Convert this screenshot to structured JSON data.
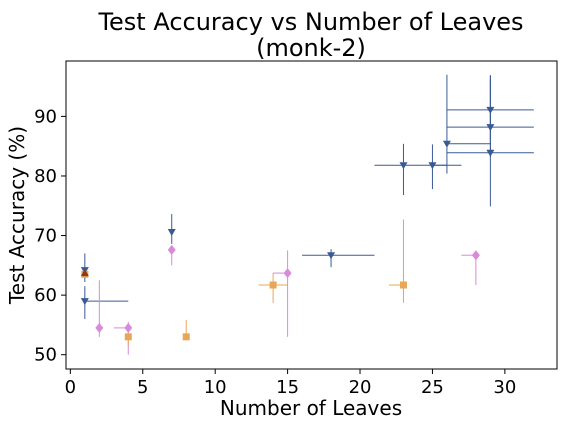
{
  "chart_data": {
    "type": "scatter",
    "title": "Test Accuracy vs Number of Leaves\n(monk-2)",
    "xlabel": "Number of Leaves",
    "ylabel": "Test Accuracy (%)",
    "xlim": [
      -0.3,
      33.6
    ],
    "ylim": [
      47.6,
      99.3
    ],
    "xticks": [
      0,
      5,
      10,
      15,
      20,
      25,
      30
    ],
    "yticks": [
      50,
      60,
      70,
      80,
      90
    ],
    "grid": false,
    "legend": "none",
    "series": [
      {
        "marker": "triangle-down",
        "color": "#3a5a95",
        "points": [
          {
            "x": 1,
            "y": 64.2,
            "xerr": [
              0,
              0
            ],
            "yerr": [
              2.0,
              2.8
            ]
          },
          {
            "x": 1,
            "y": 59.0,
            "xerr": [
              0,
              3
            ],
            "yerr": [
              3.0,
              2.5
            ]
          },
          {
            "x": 7,
            "y": 70.6,
            "xerr": [
              0,
              0
            ],
            "yerr": [
              2.0,
              3.0
            ]
          },
          {
            "x": 18,
            "y": 66.7,
            "xerr": [
              2,
              3
            ],
            "yerr": [
              2.0,
              1.0
            ]
          },
          {
            "x": 23,
            "y": 81.8,
            "xerr": [
              2,
              3
            ],
            "yerr": [
              5.0,
              3.6
            ]
          },
          {
            "x": 25,
            "y": 81.8,
            "xerr": [
              0,
              2
            ],
            "yerr": [
              4.0,
              3.5
            ]
          },
          {
            "x": 26,
            "y": 85.4,
            "xerr": [
              0,
              3
            ],
            "yerr": [
              5.0,
              11.6
            ]
          },
          {
            "x": 29,
            "y": 91.1,
            "xerr": [
              3,
              3
            ],
            "yerr": [
              5.0,
              5.8
            ]
          },
          {
            "x": 29,
            "y": 88.2,
            "xerr": [
              3,
              3
            ],
            "yerr": [
              5.0,
              8.0
            ]
          },
          {
            "x": 29,
            "y": 83.9,
            "xerr": [
              3,
              3
            ],
            "yerr": [
              9.0,
              13.0
            ]
          }
        ]
      },
      {
        "marker": "diamond",
        "color": "#d98ad9",
        "points": [
          {
            "x": 2,
            "y": 54.5,
            "xerr": [
              0,
              0
            ],
            "yerr": [
              1.5,
              8.0
            ]
          },
          {
            "x": 4,
            "y": 54.5,
            "xerr": [
              1,
              0
            ],
            "yerr": [
              4.5,
              1.0
            ]
          },
          {
            "x": 7,
            "y": 67.6,
            "xerr": [
              0,
              0
            ],
            "yerr": [
              2.6,
              0.5
            ]
          },
          {
            "x": 15,
            "y": 63.7,
            "xerr": [
              1,
              0
            ],
            "yerr": [
              10.7,
              3.8
            ]
          },
          {
            "x": 28,
            "y": 66.7,
            "xerr": [
              1,
              0
            ],
            "yerr": [
              5.0,
              0.5
            ]
          }
        ]
      },
      {
        "marker": "square",
        "color": "#e8a657",
        "points": [
          {
            "x": 1,
            "y": 63.5,
            "xerr": [
              0,
              0
            ],
            "yerr": [
              0,
              0
            ]
          },
          {
            "x": 4,
            "y": 53.0,
            "xerr": [
              0,
              0
            ],
            "yerr": [
              1.5,
              1.5
            ]
          },
          {
            "x": 8,
            "y": 53.0,
            "xerr": [
              0,
              0
            ],
            "yerr": [
              0,
              2.8
            ]
          },
          {
            "x": 14,
            "y": 61.7,
            "xerr": [
              1,
              1
            ],
            "yerr": [
              3.0,
              2.0
            ]
          },
          {
            "x": 23,
            "y": 61.7,
            "xerr": [
              1,
              0
            ],
            "yerr": [
              3.0,
              11.0
            ]
          }
        ]
      },
      {
        "marker": "triangle-up",
        "color": "#8b3a1a",
        "points": [
          {
            "x": 1,
            "y": 63.7,
            "xerr": [
              0,
              0
            ],
            "yerr": [
              0.5,
              0.3
            ]
          }
        ]
      }
    ]
  }
}
